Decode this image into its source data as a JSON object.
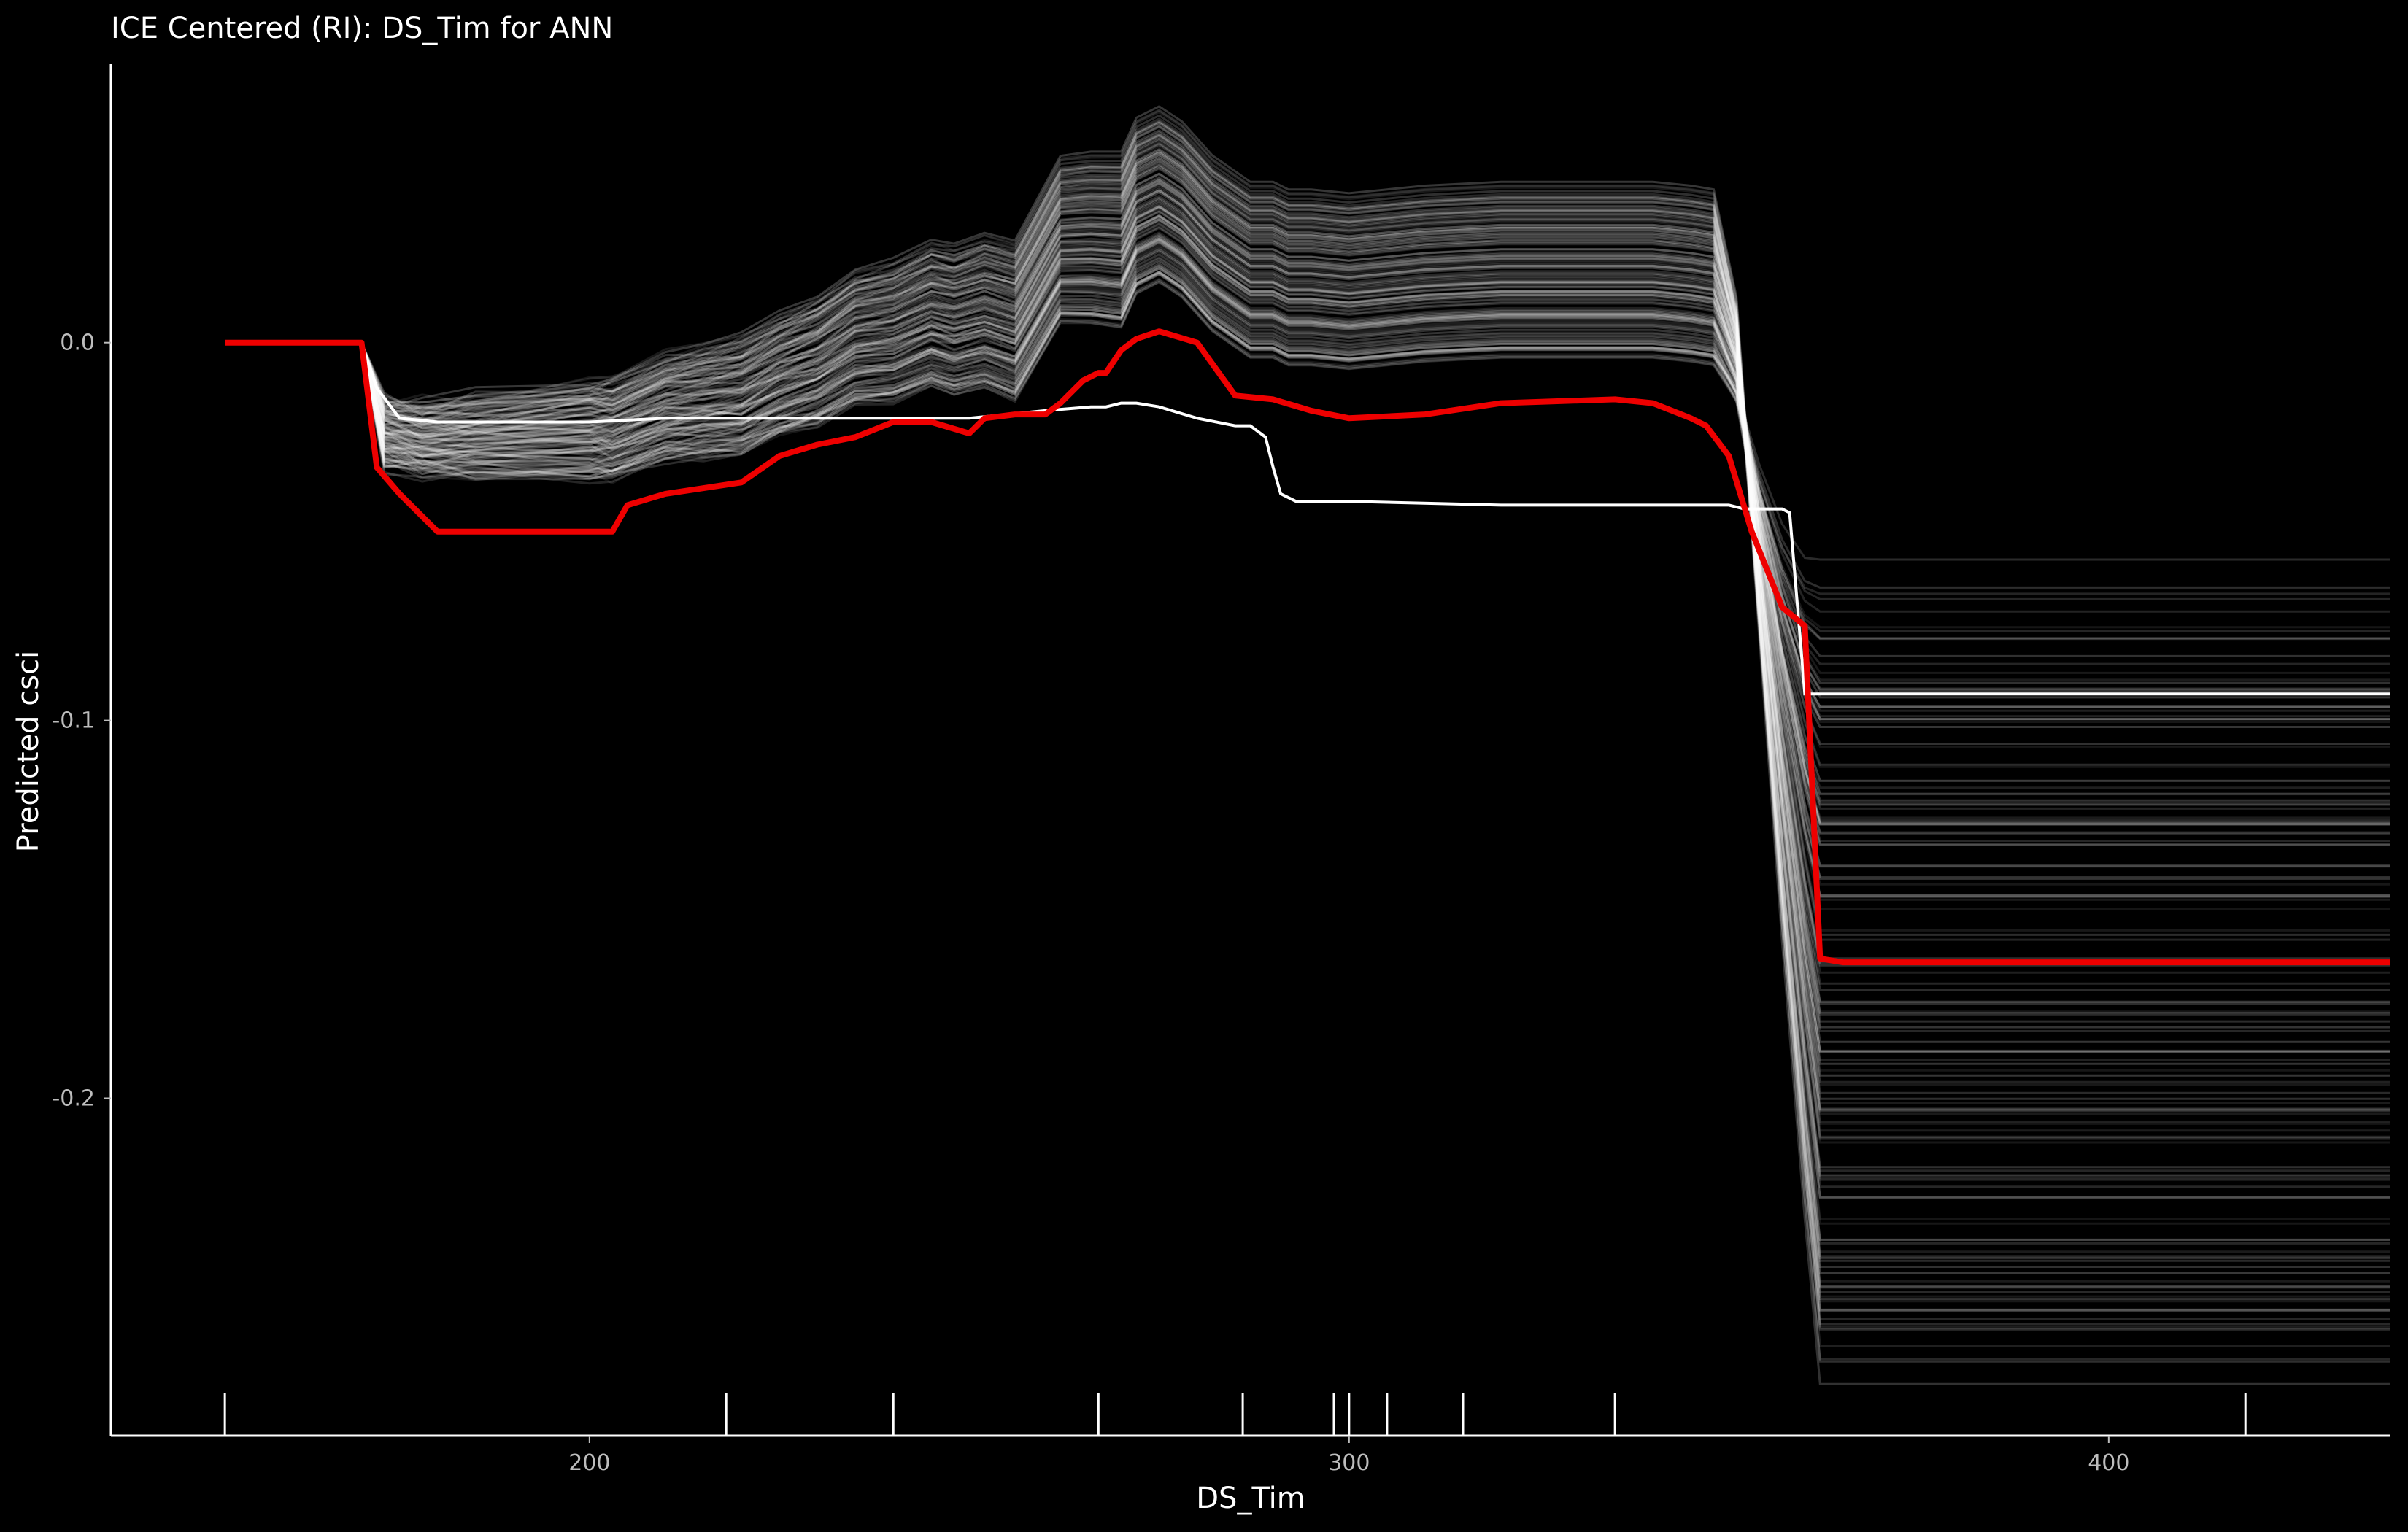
{
  "chart_data": {
    "type": "line",
    "title": "ICE Centered (RI): DS_Tim for ANN",
    "xlabel": "DS_Tim",
    "ylabel": "Predicted csci",
    "xlim": [
      137,
      437
    ],
    "ylim": [
      -0.2893,
      0.0737
    ],
    "x_ticks": [
      200,
      300,
      400
    ],
    "x_tick_labels": [
      "200",
      "300",
      "400"
    ],
    "y_ticks": [
      -0.2,
      -0.1,
      0.0
    ],
    "y_tick_labels": [
      "-0.2",
      "-0.1",
      "0.0"
    ],
    "grid": false,
    "legend": "none",
    "rug_x": [
      152,
      218,
      240,
      267,
      286,
      298,
      300,
      305,
      315,
      335,
      418
    ],
    "colors": {
      "background": "#000000",
      "ice": "#ffffff",
      "pdp": "#ee0000",
      "axis": "#ffffff"
    },
    "ice_profile": {
      "x": [
        152,
        168,
        170,
        173,
        178,
        185,
        200,
        203,
        210,
        215,
        220,
        225,
        230,
        235,
        240,
        245,
        248,
        252,
        256,
        262,
        266,
        270,
        272,
        275,
        278,
        282,
        287,
        290,
        292,
        295,
        300,
        305,
        310,
        320,
        330,
        340,
        345,
        348,
        351,
        352,
        354,
        357,
        360,
        362,
        365,
        370,
        380,
        400,
        420,
        437
      ],
      "note_x": "shared x grid for the series below",
      "base_y": [
        0,
        0,
        -0.015,
        -0.025,
        -0.027,
        -0.027,
        -0.027,
        -0.027,
        -0.022,
        -0.021,
        -0.02,
        -0.015,
        -0.012,
        -0.006,
        -0.005,
        -0.001,
        -0.003,
        -0.001,
        -0.004,
        0.017,
        0.017,
        0.016,
        0.025,
        0.028,
        0.024,
        0.015,
        0.008,
        0.008,
        0.006,
        0.006,
        0.005,
        0.006,
        0.007,
        0.008,
        0.008,
        0.008,
        0.007,
        0.006,
        0.002,
        -0.002,
        -0.01,
        -0.025,
        -0.045,
        -0.05,
        -0.07,
        -0.08,
        -0.09,
        -0.092,
        -0.092,
        -0.092
      ]
    },
    "ice_count": 140,
    "series": [
      {
        "name": "",
        "role": "pdp",
        "x": [
          152,
          170,
          172,
          175,
          180,
          190,
          200,
          203,
          205,
          210,
          220,
          225,
          230,
          235,
          240,
          245,
          250,
          252,
          256,
          260,
          262,
          265,
          267,
          268,
          270,
          272,
          275,
          280,
          285,
          290,
          295,
          300,
          310,
          320,
          335,
          340,
          345,
          347,
          350,
          353,
          355,
          357,
          360,
          362,
          365,
          370,
          380,
          400,
          420,
          437
        ],
        "y": [
          0,
          0,
          -0.033,
          -0.04,
          -0.05,
          -0.05,
          -0.05,
          -0.05,
          -0.043,
          -0.04,
          -0.037,
          -0.03,
          -0.027,
          -0.025,
          -0.021,
          -0.021,
          -0.024,
          -0.02,
          -0.019,
          -0.019,
          -0.016,
          -0.01,
          -0.008,
          -0.008,
          -0.002,
          0.001,
          0.003,
          0.0,
          -0.014,
          -0.015,
          -0.018,
          -0.02,
          -0.019,
          -0.016,
          -0.015,
          -0.016,
          -0.02,
          -0.022,
          -0.03,
          -0.05,
          -0.06,
          -0.07,
          -0.075,
          -0.163,
          -0.164,
          -0.164,
          -0.164,
          -0.164,
          -0.164,
          -0.164
        ]
      },
      {
        "name": "",
        "role": "highlight",
        "x": [
          152,
          170,
          172,
          175,
          180,
          190,
          200,
          210,
          220,
          230,
          240,
          250,
          260,
          266,
          268,
          270,
          272,
          275,
          280,
          285,
          287,
          289,
          290,
          291,
          293,
          300,
          320,
          340,
          345,
          350,
          352,
          354,
          356,
          357,
          358,
          360,
          362,
          365,
          370,
          380,
          400,
          420,
          437
        ],
        "y": [
          0,
          0,
          -0.012,
          -0.02,
          -0.021,
          -0.021,
          -0.021,
          -0.02,
          -0.02,
          -0.02,
          -0.02,
          -0.02,
          -0.018,
          -0.017,
          -0.017,
          -0.016,
          -0.016,
          -0.017,
          -0.02,
          -0.022,
          -0.022,
          -0.025,
          -0.033,
          -0.04,
          -0.042,
          -0.042,
          -0.043,
          -0.043,
          -0.043,
          -0.043,
          -0.044,
          -0.044,
          -0.044,
          -0.044,
          -0.045,
          -0.093,
          -0.093,
          -0.093,
          -0.093,
          -0.093,
          -0.093,
          -0.093,
          -0.093
        ]
      }
    ]
  }
}
